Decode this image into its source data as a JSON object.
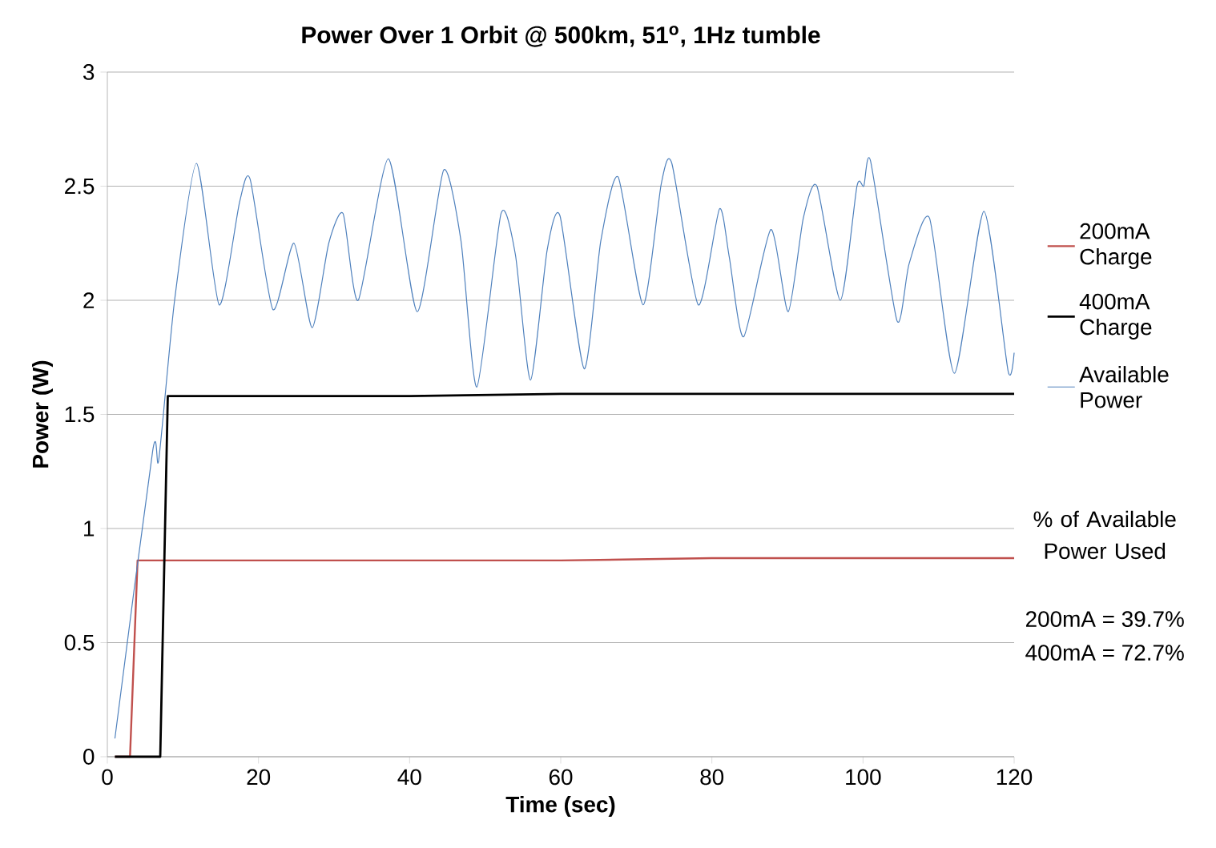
{
  "chart_data": {
    "type": "line",
    "title": "Power Over 1 Orbit @ 500km, 51$^{o}$, 1Hz tumble",
    "xlabel": "Time (sec)",
    "ylabel": "Power (W)",
    "series": [
      {
        "name": "200mA Charge",
        "color": "#c0504d",
        "x": [
          1,
          3,
          4,
          10,
          20,
          40,
          60,
          80,
          100,
          120
        ],
        "values": [
          0,
          0,
          0.86,
          0.86,
          0.86,
          0.86,
          0.86,
          0.87,
          0.87,
          0.87
        ]
      },
      {
        "name": "400mA Charge",
        "color": "#000000",
        "x": [
          1,
          7,
          8,
          20,
          40,
          60,
          80,
          100,
          120
        ],
        "values": [
          0,
          0,
          1.58,
          1.58,
          1.58,
          1.59,
          1.59,
          1.59,
          1.59
        ]
      },
      {
        "name": "Available Power",
        "color": "#4f81bd",
        "x": [
          1,
          6,
          6.8,
          8.9,
          11.8,
          14.8,
          17.5,
          18.9,
          21.9,
          24.7,
          27.1,
          29.3,
          31.2,
          33.2,
          37.2,
          41,
          44.5,
          46.8,
          48.9,
          52.1,
          54,
          56,
          58.2,
          59.9,
          63.1,
          65.3,
          67.6,
          70.9,
          73.3,
          74.7,
          78.2,
          81,
          82.3,
          84.2,
          87.8,
          90.1,
          92.1,
          93.9,
          97,
          99.2,
          100.1,
          101,
          104.5,
          106.1,
          108.8,
          112.1,
          116,
          119.2,
          120
        ],
        "values": [
          0.08,
          1.34,
          1.3,
          2.0,
          2.6,
          1.98,
          2.43,
          2.53,
          1.96,
          2.25,
          1.88,
          2.25,
          2.38,
          2.0,
          2.62,
          1.95,
          2.57,
          2.26,
          1.62,
          2.38,
          2.2,
          1.65,
          2.22,
          2.37,
          1.7,
          2.26,
          2.54,
          1.98,
          2.51,
          2.6,
          1.98,
          2.4,
          2.19,
          1.84,
          2.31,
          1.95,
          2.36,
          2.5,
          2.0,
          2.5,
          2.5,
          2.61,
          1.91,
          2.16,
          2.36,
          1.68,
          2.39,
          1.69,
          1.77
        ]
      }
    ],
    "xlim": [
      0,
      120
    ],
    "xticks": [
      0,
      20,
      40,
      60,
      80,
      100,
      120
    ],
    "ylim": [
      0,
      3
    ],
    "yticks": [
      0,
      0.5,
      1,
      1.5,
      2,
      2.5,
      3
    ],
    "grid": "y",
    "legend": "right",
    "marker": "none",
    "line_style": "solid",
    "annotations": [
      "% of Available Power Used",
      "200mA = 39.7%",
      "400mA = 72.7%"
    ]
  }
}
